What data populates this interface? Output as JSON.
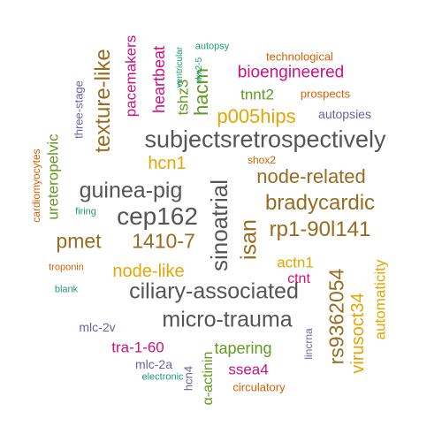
{
  "words": [
    {
      "text": "subjectsretrospectively",
      "color": "#555555"
    },
    {
      "text": "guinea-pig",
      "color": "#555555"
    },
    {
      "text": "cep162",
      "color": "#555555"
    },
    {
      "text": "ciliary-associated",
      "color": "#555555"
    },
    {
      "text": "micro-trauma",
      "color": "#555555"
    },
    {
      "text": "sinoatrial",
      "color": "#555555"
    },
    {
      "text": "node-related",
      "color": "#9a6b1f"
    },
    {
      "text": "bradycardic",
      "color": "#9a6b1f"
    },
    {
      "text": "rp1-90l141",
      "color": "#9a6b1f"
    },
    {
      "text": "pmet",
      "color": "#9a6b1f"
    },
    {
      "text": "1410-7",
      "color": "#9a6b1f"
    },
    {
      "text": "texture-like",
      "color": "#9a6b1f"
    },
    {
      "text": "rs9362054",
      "color": "#9a6b1f"
    },
    {
      "text": "isan",
      "color": "#9a6b1f"
    },
    {
      "text": "p005hips",
      "color": "#e6a500"
    },
    {
      "text": "hcn1",
      "color": "#e6a500"
    },
    {
      "text": "node-like",
      "color": "#e6a500"
    },
    {
      "text": "virusoct34",
      "color": "#e6a500"
    },
    {
      "text": "automaticity",
      "color": "#e6a500"
    },
    {
      "text": "actn1",
      "color": "#e6a500"
    },
    {
      "text": "bioengineered",
      "color": "#d40f7e"
    },
    {
      "text": "pacemakers",
      "color": "#d40f7e"
    },
    {
      "text": "heartbeat",
      "color": "#d40f7e"
    },
    {
      "text": "ctnt",
      "color": "#d40f7e"
    },
    {
      "text": "tra-1-60",
      "color": "#d40f7e"
    },
    {
      "text": "ssea4",
      "color": "#d40f7e"
    },
    {
      "text": "hacm",
      "color": "#5f9b1d"
    },
    {
      "text": "tshz3",
      "color": "#5f9b1d"
    },
    {
      "text": "tnnt2",
      "color": "#5f9b1d"
    },
    {
      "text": "ureteropelvic",
      "color": "#5f9b1d"
    },
    {
      "text": "tapering",
      "color": "#5f9b1d"
    },
    {
      "text": "α-actinin",
      "color": "#5f9b1d"
    },
    {
      "text": "autopsies",
      "color": "#6b5fa8"
    },
    {
      "text": "three-stage",
      "color": "#6b5fa8"
    },
    {
      "text": "mlc-2v",
      "color": "#6b5fa8"
    },
    {
      "text": "mlc-2a",
      "color": "#6b5fa8"
    },
    {
      "text": "hcn4",
      "color": "#6b5fa8"
    },
    {
      "text": "lincrna",
      "color": "#6b5fa8"
    },
    {
      "text": "technological",
      "color": "#d95f02"
    },
    {
      "text": "prospects",
      "color": "#d95f02"
    },
    {
      "text": "shox2",
      "color": "#d95f02"
    },
    {
      "text": "cardiomyocytes",
      "color": "#d95f02"
    },
    {
      "text": "troponin",
      "color": "#d95f02"
    },
    {
      "text": "circulatory",
      "color": "#d95f02"
    },
    {
      "text": "autopsy",
      "color": "#1b9e77"
    },
    {
      "text": "ventricular",
      "color": "#1b9e77"
    },
    {
      "text": "nkx2-5",
      "color": "#1b9e77"
    },
    {
      "text": "firing",
      "color": "#1b9e77"
    },
    {
      "text": "blank",
      "color": "#1b9e77"
    },
    {
      "text": "electronic",
      "color": "#1b9e77"
    }
  ]
}
